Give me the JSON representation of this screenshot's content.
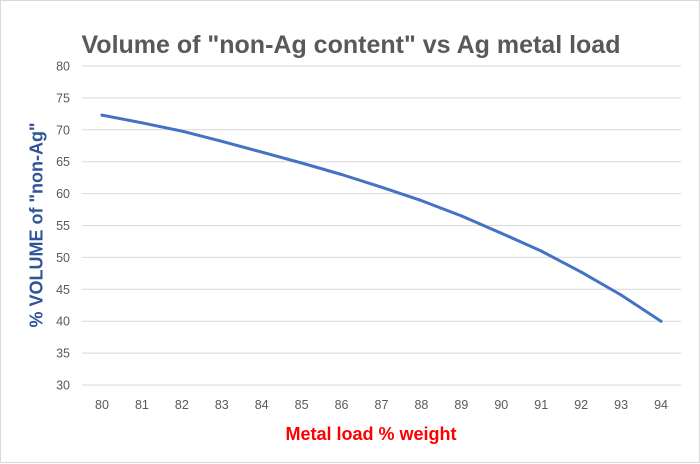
{
  "chart_data": {
    "type": "line",
    "title": "Volume of \"non-Ag content\" vs Ag metal load",
    "xlabel": "Metal load % weight",
    "ylabel": "% VOLUME of \"non-Ag\"",
    "x": [
      80,
      81,
      82,
      83,
      84,
      85,
      86,
      87,
      88,
      89,
      90,
      91,
      92,
      93,
      94
    ],
    "series": [
      {
        "values": [
          72.3,
          71.1,
          69.8,
          68.2,
          66.5,
          64.8,
          63.0,
          61.0,
          58.9,
          56.5,
          53.8,
          51.0,
          47.7,
          44.1,
          40.0
        ]
      }
    ],
    "xlim": [
      80,
      94
    ],
    "ylim": [
      30,
      80
    ],
    "yticks": [
      30,
      35,
      40,
      45,
      50,
      55,
      60,
      65,
      70,
      75,
      80
    ],
    "grid": true,
    "legend": "none",
    "colors": {
      "line": "#4472c4",
      "grid": "#d9d9d9",
      "title": "#595959",
      "xlabel": "#ff0000",
      "ylabel": "#2f5597",
      "ticks": "#595959"
    }
  }
}
